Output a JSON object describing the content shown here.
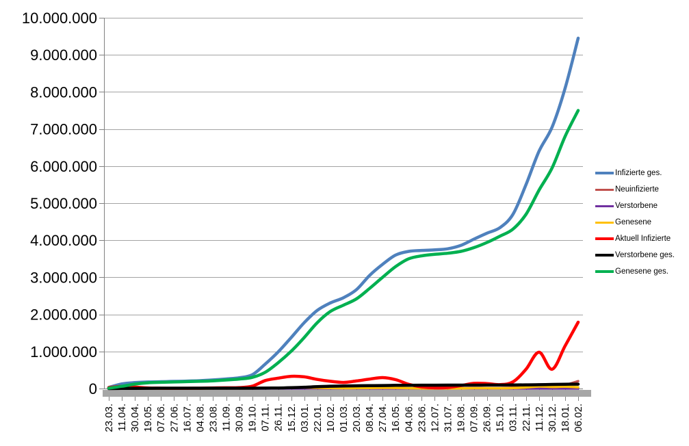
{
  "chart_data": {
    "type": "line",
    "title": "",
    "grid": "horizontal",
    "legend_position": "right",
    "x": {
      "label_rotation_deg": -90,
      "labels": [
        "23.03.",
        "11.04.",
        "30.04.",
        "19.05.",
        "07.06.",
        "27.06.",
        "16.07.",
        "04.08.",
        "23.08.",
        "11.09.",
        "30.09.",
        "19.10.",
        "07.11.",
        "26.11.",
        "15.12.",
        "03.01.",
        "22.01.",
        "10.02.",
        "01.03.",
        "20.03.",
        "08.04.",
        "27.04.",
        "16.05.",
        "04.06.",
        "23.06.",
        "12.07.",
        "31.07.",
        "19.08.",
        "07.09.",
        "26.09.",
        "15.10.",
        "03.11.",
        "22.11.",
        "11.12.",
        "30.12.",
        "18.01.",
        "06.02."
      ]
    },
    "y": {
      "min": 0,
      "max": 10000000,
      "step": 1000000,
      "tick_labels": [
        "0",
        "1.000.000",
        "2.000.000",
        "3.000.000",
        "4.000.000",
        "5.000.000",
        "6.000.000",
        "7.000.000",
        "8.000.000",
        "9.000.000",
        "10.000.000"
      ]
    },
    "series": [
      {
        "name": "Infizierte ges.",
        "color": "#4F81BD",
        "stroke_width": 4.5,
        "values": [
          30000,
          125000,
          160000,
          177000,
          184000,
          193000,
          201000,
          212000,
          233000,
          259000,
          291000,
          370000,
          660000,
          990000,
          1380000,
          1780000,
          2110000,
          2310000,
          2450000,
          2670000,
          3050000,
          3350000,
          3600000,
          3700000,
          3725000,
          3740000,
          3770000,
          3860000,
          4030000,
          4190000,
          4340000,
          4700000,
          5500000,
          6400000,
          7050000,
          8100000,
          9450000
        ]
      },
      {
        "name": "Neuinfizierte",
        "color": "#C0504D",
        "stroke_width": 3.5,
        "values": [
          4000,
          4800,
          1800,
          700,
          350,
          450,
          400,
          900,
          1400,
          1500,
          2100,
          7000,
          20000,
          20000,
          25000,
          20000,
          15000,
          9000,
          8000,
          15000,
          20000,
          22000,
          12000,
          4000,
          1000,
          900,
          2500,
          9000,
          12000,
          9000,
          10000,
          25000,
          55000,
          60000,
          40000,
          95000,
          200000
        ]
      },
      {
        "name": "Verstorbene",
        "color": "#7030A0",
        "stroke_width": 3.5,
        "values": [
          60,
          250,
          180,
          80,
          30,
          20,
          15,
          15,
          15,
          15,
          20,
          50,
          150,
          300,
          550,
          750,
          800,
          600,
          350,
          220,
          200,
          230,
          200,
          120,
          70,
          30,
          25,
          40,
          60,
          70,
          80,
          150,
          250,
          400,
          380,
          200,
          170
        ]
      },
      {
        "name": "Genesene",
        "color": "#FFC000",
        "stroke_width": 3.5,
        "values": [
          2000,
          4500,
          3500,
          1800,
          900,
          700,
          600,
          800,
          1100,
          1300,
          1500,
          3500,
          12000,
          18000,
          22000,
          25000,
          19000,
          12000,
          9000,
          11000,
          15000,
          18000,
          16000,
          9000,
          4000,
          1500,
          1800,
          5000,
          9000,
          8500,
          7000,
          12000,
          30000,
          55000,
          45000,
          50000,
          35000
        ]
      },
      {
        "name": "Aktuell Infizierte",
        "color": "#FF0000",
        "stroke_width": 4.5,
        "values": [
          25000,
          60000,
          38000,
          16000,
          9000,
          7000,
          7000,
          10000,
          16000,
          21000,
          25000,
          62000,
          215000,
          280000,
          330000,
          315000,
          245000,
          195000,
          165000,
          205000,
          255000,
          295000,
          240000,
          115000,
          45000,
          20000,
          28000,
          80000,
          140000,
          135000,
          105000,
          180000,
          520000,
          980000,
          520000,
          1150000,
          1790000
        ]
      },
      {
        "name": "Verstorbene ges.",
        "color": "#000000",
        "stroke_width": 4.5,
        "values": [
          200,
          2800,
          6300,
          8100,
          8700,
          9000,
          9100,
          9200,
          9300,
          9400,
          9500,
          9900,
          11500,
          15000,
          23500,
          34500,
          50000,
          62500,
          70000,
          74500,
          78000,
          82000,
          86000,
          89000,
          90500,
          91300,
          91700,
          92000,
          92500,
          93300,
          94500,
          96000,
          99000,
          104000,
          111000,
          115500,
          118500
        ]
      },
      {
        "name": "Genesene ges.",
        "color": "#00B050",
        "stroke_width": 4.5,
        "values": [
          10000,
          60000,
          120000,
          155000,
          168000,
          177000,
          187000,
          196000,
          209000,
          230000,
          257000,
          300000,
          440000,
          700000,
          1010000,
          1380000,
          1780000,
          2080000,
          2250000,
          2420000,
          2700000,
          3000000,
          3290000,
          3500000,
          3580000,
          3620000,
          3650000,
          3700000,
          3800000,
          3940000,
          4110000,
          4300000,
          4700000,
          5350000,
          5950000,
          6800000,
          7500000
        ]
      }
    ]
  },
  "style": {
    "background": "#FFFFFF",
    "gridline_color": "#A3A3A3",
    "axis_color": "#808080",
    "axis_shadow_color": "#A6A6A6",
    "text_color": "#000000"
  }
}
